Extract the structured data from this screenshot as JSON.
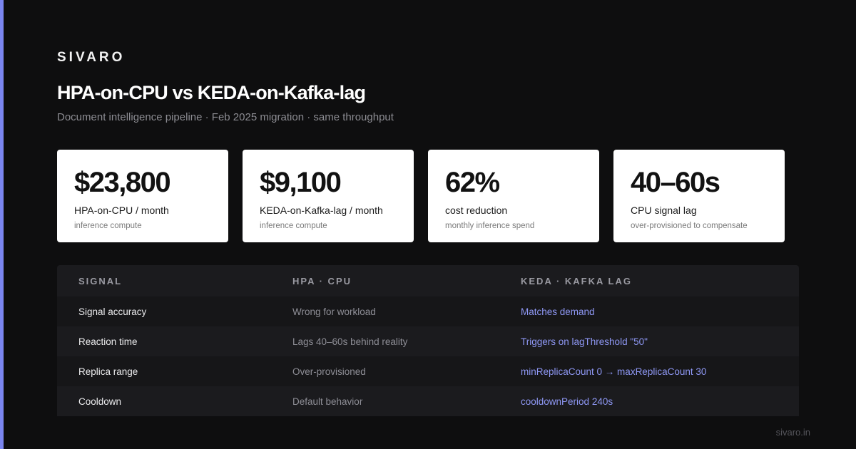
{
  "brand": "SIVARO",
  "title": "HPA-on-CPU vs KEDA-on-Kafka-lag",
  "subtitle": "Document intelligence pipeline · Feb 2025 migration · same throughput",
  "colors": {
    "accent": "#7b86f0",
    "background": "#0e0e0f",
    "keda_text": "#8f98f5"
  },
  "stats": [
    {
      "value": "$23,800",
      "label": "HPA-on-CPU / month",
      "sub": "inference compute"
    },
    {
      "value": "$9,100",
      "label": "KEDA-on-Kafka-lag / month",
      "sub": "inference compute"
    },
    {
      "value": "62%",
      "label": "cost reduction",
      "sub": "monthly inference spend"
    },
    {
      "value": "40–60s",
      "label": "CPU signal lag",
      "sub": "over-provisioned to compensate"
    }
  ],
  "table": {
    "headers": [
      "SIGNAL",
      "HPA · CPU",
      "KEDA · KAFKA LAG"
    ],
    "rows": [
      [
        "Signal accuracy",
        "Wrong for workload",
        "Matches demand"
      ],
      [
        "Reaction time",
        "Lags 40–60s behind reality",
        "Triggers on lagThreshold \"50\""
      ],
      [
        "Replica range",
        "Over-provisioned",
        "minReplicaCount 0 → maxReplicaCount 30"
      ],
      [
        "Cooldown",
        "Default behavior",
        "cooldownPeriod 240s"
      ]
    ]
  },
  "footer": "sivaro.in"
}
